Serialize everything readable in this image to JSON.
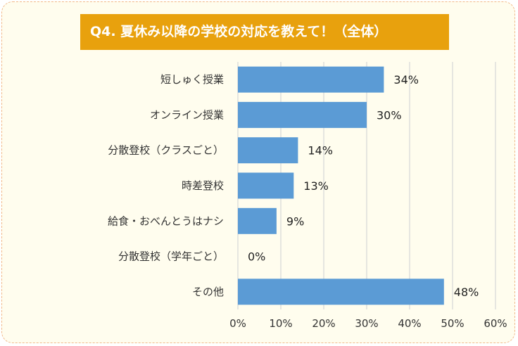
{
  "title": "Q4. 夏休み以降の学校の対応を教えて！（全体）",
  "colors": {
    "bar": "#5b9bd5",
    "title_bg": "#e8a10d",
    "card_bg": "#fffdee",
    "border": "#f2b98a",
    "grid": "#d6d6d6"
  },
  "chart_data": {
    "type": "bar",
    "orientation": "horizontal",
    "title": "Q4. 夏休み以降の学校の対応を教えて！（全体）",
    "categories": [
      "短しゅく授業",
      "オンライン授業",
      "分散登校（クラスごと）",
      "時差登校",
      "給食・おべんとうはナシ",
      "分散登校（学年ごと）",
      "その他"
    ],
    "values": [
      34,
      30,
      14,
      13,
      9,
      0,
      48
    ],
    "value_labels": [
      "34%",
      "30%",
      "14%",
      "13%",
      "9%",
      "0%",
      "48%"
    ],
    "xlim": [
      0,
      60
    ],
    "ticks": [
      0,
      10,
      20,
      30,
      40,
      50,
      60
    ],
    "tick_labels": [
      "0%",
      "10%",
      "20%",
      "30%",
      "40%",
      "50%",
      "60%"
    ],
    "grid": true,
    "legend": "none"
  }
}
